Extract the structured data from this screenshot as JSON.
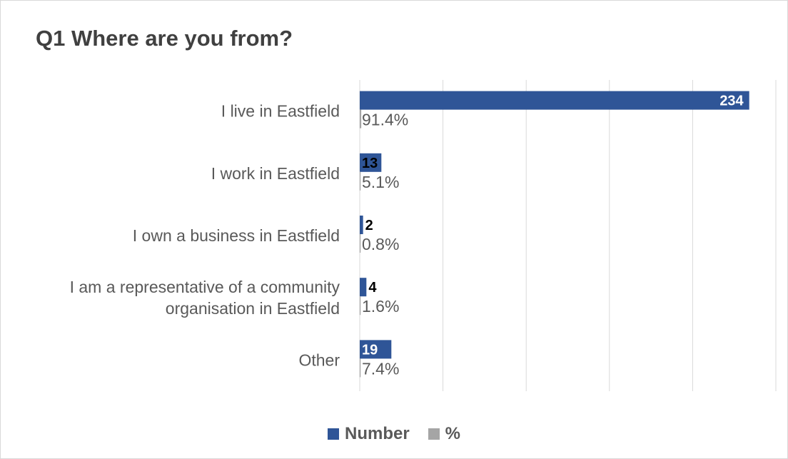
{
  "chart_data": {
    "type": "bar",
    "orientation": "horizontal",
    "title": "Q1 Where are you from?",
    "categories": [
      "I live in Eastfield",
      "I work in Eastfield",
      "I own a business in Eastfield",
      "I am a representative of a community organisation in Eastfield",
      "Other"
    ],
    "category_lines": [
      [
        "I live in Eastfield"
      ],
      [
        "I work in Eastfield"
      ],
      [
        "I own a business in Eastfield"
      ],
      [
        "I am a representative of a community",
        "organisation in Eastfield"
      ],
      [
        "Other"
      ]
    ],
    "series": [
      {
        "name": "Number",
        "values": [
          234,
          13,
          2,
          4,
          19
        ],
        "labels": [
          "234",
          "13",
          "2",
          "4",
          "19"
        ],
        "color": "#2f5597"
      },
      {
        "name": "%",
        "values": [
          91.4,
          5.1,
          0.8,
          1.6,
          7.4
        ],
        "labels": [
          "91.4%",
          "5.1%",
          "0.8%",
          "1.6%",
          "7.4%"
        ],
        "color": "#a5a5a5"
      }
    ],
    "xlim": [
      0,
      250
    ],
    "grid": true,
    "legend": "bottom"
  }
}
